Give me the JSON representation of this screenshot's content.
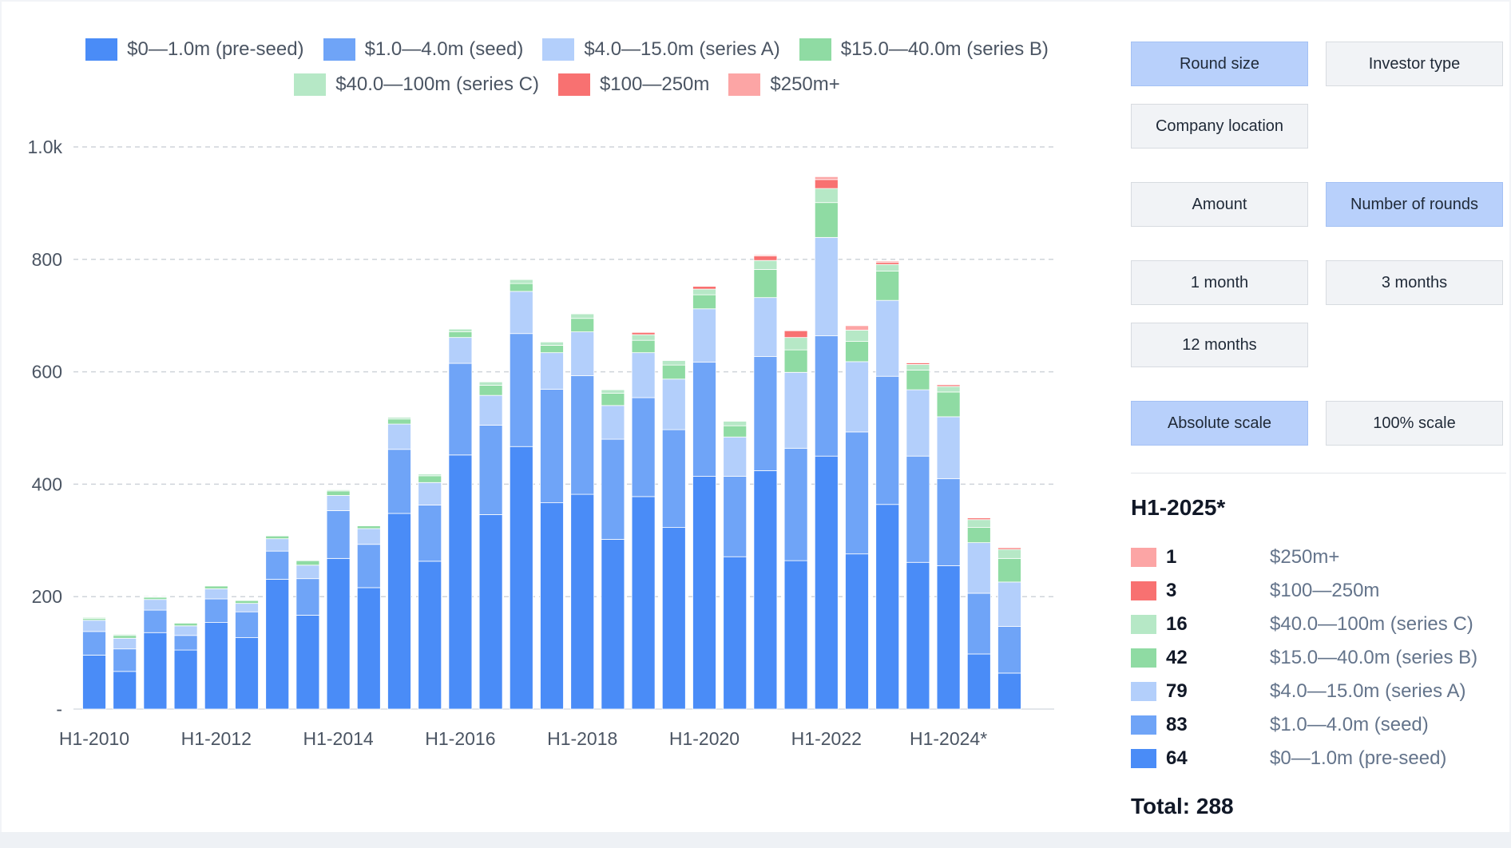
{
  "colors": {
    "pre_seed": "#4a8cf7",
    "seed": "#6fa4f7",
    "series_a": "#b3cffb",
    "series_b": "#8fdba3",
    "series_c": "#b6e8c6",
    "r100_250": "#f87171",
    "r250_plus": "#fca5a5",
    "grid": "#cfd4da",
    "axis_text": "#4b5563"
  },
  "legend": [
    {
      "label": "$0—1.0m (pre-seed)",
      "color": "#4a8cf7"
    },
    {
      "label": "$1.0—4.0m (seed)",
      "color": "#6fa4f7"
    },
    {
      "label": "$4.0—15.0m (series A)",
      "color": "#b3cffb"
    },
    {
      "label": "$15.0—40.0m (series B)",
      "color": "#8fdba3"
    },
    {
      "label": "$40.0—100m (series C)",
      "color": "#b6e8c6"
    },
    {
      "label": "$100—250m",
      "color": "#f87171"
    },
    {
      "label": "$250m+",
      "color": "#fca5a5"
    }
  ],
  "buttons": {
    "round_size": "Round size",
    "investor_type": "Investor type",
    "company_location": "Company location",
    "amount": "Amount",
    "number_of_rounds": "Number of rounds",
    "one_month": "1 month",
    "three_months": "3 months",
    "twelve_months": "12 months",
    "absolute_scale": "Absolute scale",
    "percent_scale": "100% scale"
  },
  "summary": {
    "title": "H1-2025*",
    "rows": [
      {
        "count": "1",
        "label": "$250m+",
        "color": "#fca5a5"
      },
      {
        "count": "3",
        "label": "$100—250m",
        "color": "#f87171"
      },
      {
        "count": "16",
        "label": "$40.0—100m (series C)",
        "color": "#b6e8c6"
      },
      {
        "count": "42",
        "label": "$15.0—40.0m (series B)",
        "color": "#8fdba3"
      },
      {
        "count": "79",
        "label": "$4.0—15.0m (series A)",
        "color": "#b3cffb"
      },
      {
        "count": "83",
        "label": "$1.0—4.0m (seed)",
        "color": "#6fa4f7"
      },
      {
        "count": "64",
        "label": "$0—1.0m (pre-seed)",
        "color": "#4a8cf7"
      }
    ],
    "total": "Total: 288"
  },
  "chart_data": {
    "type": "bar",
    "stacked": true,
    "ylim": [
      0,
      1000
    ],
    "yticks": [
      {
        "value": 0,
        "label": "-"
      },
      {
        "value": 200,
        "label": "200"
      },
      {
        "value": 400,
        "label": "400"
      },
      {
        "value": 600,
        "label": "600"
      },
      {
        "value": 800,
        "label": "800"
      },
      {
        "value": 1000,
        "label": "1.0k"
      }
    ],
    "grid": true,
    "legend_position": "top",
    "xtick_labels": [
      {
        "index": 0,
        "label": "H1-2010"
      },
      {
        "index": 4,
        "label": "H1-2012"
      },
      {
        "index": 8,
        "label": "H1-2014"
      },
      {
        "index": 12,
        "label": "H1-2016"
      },
      {
        "index": 16,
        "label": "H1-2018"
      },
      {
        "index": 20,
        "label": "H1-2020"
      },
      {
        "index": 24,
        "label": "H1-2022"
      },
      {
        "index": 28,
        "label": "H1-2024*"
      }
    ],
    "categories": [
      "H1-2010",
      "H2-2010",
      "H1-2011",
      "H2-2011",
      "H1-2012",
      "H2-2012",
      "H1-2013",
      "H2-2013",
      "H1-2014",
      "H2-2014",
      "H1-2015",
      "H2-2015",
      "H1-2016",
      "H2-2016",
      "H1-2017",
      "H2-2017",
      "H1-2018",
      "H2-2018",
      "H1-2019",
      "H2-2019",
      "H1-2020",
      "H2-2020",
      "H1-2021",
      "H2-2021",
      "H1-2022",
      "H2-2022",
      "H1-2023",
      "H2-2023",
      "H1-2024",
      "H2-2024",
      "H1-2025"
    ],
    "series": [
      {
        "name": "$0—1.0m (pre-seed)",
        "color": "#4a8cf7",
        "values": [
          96,
          67,
          136,
          105,
          154,
          127,
          231,
          167,
          268,
          216,
          348,
          263,
          452,
          346,
          467,
          367,
          382,
          302,
          378,
          323,
          414,
          271,
          424,
          264,
          450,
          276,
          364,
          261,
          255,
          98,
          64
        ]
      },
      {
        "name": "$1.0—4.0m (seed)",
        "color": "#6fa4f7",
        "values": [
          42,
          40,
          40,
          26,
          42,
          46,
          50,
          65,
          85,
          77,
          114,
          100,
          163,
          159,
          201,
          202,
          211,
          178,
          176,
          174,
          203,
          143,
          203,
          200,
          214,
          217,
          228,
          189,
          155,
          108,
          83
        ]
      },
      {
        "name": "$4.0—15.0m (series A)",
        "color": "#b3cffb",
        "values": [
          20,
          19,
          19,
          17,
          18,
          15,
          22,
          24,
          27,
          28,
          45,
          40,
          46,
          53,
          75,
          65,
          78,
          60,
          80,
          90,
          95,
          70,
          105,
          135,
          175,
          125,
          135,
          118,
          110,
          90,
          79
        ]
      },
      {
        "name": "$15.0—40.0m (series B)",
        "color": "#8fdba3",
        "values": [
          3,
          5,
          4,
          5,
          5,
          5,
          5,
          8,
          8,
          5,
          9,
          12,
          10,
          18,
          14,
          13,
          24,
          22,
          22,
          25,
          25,
          20,
          50,
          40,
          62,
          36,
          52,
          35,
          44,
          27,
          42
        ]
      },
      {
        "name": "$40.0—100m (series C)",
        "color": "#b6e8c6",
        "values": [
          2,
          2,
          1,
          1,
          1,
          1,
          1,
          1,
          2,
          1,
          3,
          3,
          5,
          6,
          7,
          6,
          8,
          6,
          10,
          8,
          10,
          8,
          16,
          22,
          25,
          20,
          12,
          10,
          10,
          14,
          16
        ]
      },
      {
        "name": "$100—250m",
        "color": "#f87171",
        "values": [
          0,
          0,
          0,
          0,
          0,
          0,
          0,
          0,
          0,
          0,
          0,
          0,
          0,
          0,
          0,
          0,
          0,
          0,
          4,
          0,
          5,
          0,
          8,
          12,
          16,
          0,
          4,
          3,
          3,
          3,
          3
        ]
      },
      {
        "name": "$250m+",
        "color": "#fca5a5",
        "values": [
          0,
          0,
          0,
          0,
          0,
          0,
          0,
          0,
          0,
          0,
          0,
          0,
          0,
          0,
          0,
          0,
          0,
          0,
          0,
          0,
          0,
          0,
          2,
          0,
          5,
          8,
          2,
          1,
          1,
          1,
          1
        ]
      }
    ]
  }
}
